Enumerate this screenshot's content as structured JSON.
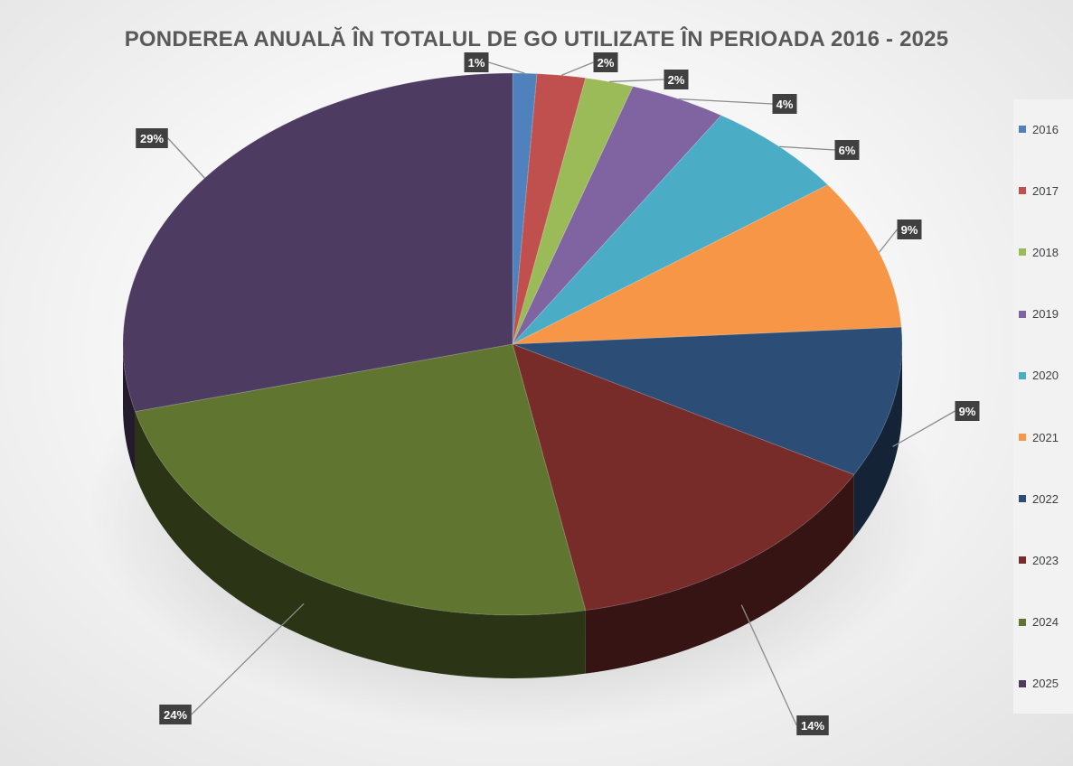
{
  "chart_data": {
    "type": "pie",
    "title": "PONDEREA ANUALĂ ÎN TOTALUL DE GO UTILIZATE ÎN PERIOADA 2016 - 2025",
    "style": "3d",
    "legend_position": "right",
    "categories": [
      "2016",
      "2017",
      "2018",
      "2019",
      "2020",
      "2021",
      "2022",
      "2023",
      "2024",
      "2025"
    ],
    "values": [
      1,
      2,
      2,
      4,
      6,
      9,
      9,
      14,
      24,
      29
    ],
    "labels": [
      "1%",
      "2%",
      "2%",
      "4%",
      "6%",
      "9%",
      "9%",
      "14%",
      "24%",
      "29%"
    ],
    "colors": [
      "#4f81bd",
      "#c0504d",
      "#9bbb59",
      "#8064a2",
      "#4bacc6",
      "#f79646",
      "#2c4d75",
      "#772c2a",
      "#5f7530",
      "#4d3b62"
    ]
  }
}
